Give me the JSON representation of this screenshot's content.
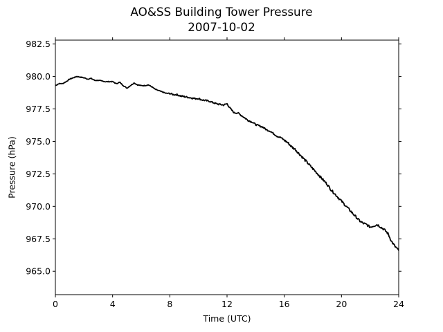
{
  "chart_data": {
    "type": "line",
    "title": "AO&SS Building Tower Pressure",
    "subtitle": "2007-10-02",
    "xlabel": "Time (UTC)",
    "ylabel": "Pressure (hPa)",
    "xlim": [
      0,
      24
    ],
    "ylim": [
      963.2,
      982.8
    ],
    "xticks": [
      0,
      4,
      8,
      12,
      16,
      20,
      24
    ],
    "xtick_labels": [
      "0",
      "4",
      "8",
      "12",
      "16",
      "20",
      "24"
    ],
    "yticks": [
      965.0,
      967.5,
      970.0,
      972.5,
      975.0,
      977.5,
      980.0,
      982.5
    ],
    "ytick_labels": [
      "965.0",
      "967.5",
      "970.0",
      "972.5",
      "975.0",
      "977.5",
      "980.0",
      "982.5"
    ],
    "grid": false,
    "line_color": "#000000",
    "series": [
      {
        "x": [
          0,
          0.25,
          0.5,
          0.75,
          1.0,
          1.25,
          1.5,
          1.75,
          2.0,
          2.25,
          2.5,
          2.75,
          3.0,
          3.25,
          3.5,
          3.75,
          4.0,
          4.25,
          4.5,
          4.75,
          5.0,
          5.25,
          5.5,
          5.75,
          6.0,
          6.25,
          6.5,
          6.75,
          7.0,
          7.25,
          7.5,
          7.75,
          8.0,
          8.25,
          8.5,
          8.75,
          9.0,
          9.25,
          9.5,
          9.75,
          10.0,
          10.25,
          10.5,
          10.75,
          11.0,
          11.25,
          11.5,
          11.75,
          12.0,
          12.25,
          12.5,
          12.75,
          13.0,
          13.25,
          13.5,
          13.75,
          14.0,
          14.25,
          14.5,
          14.75,
          15.0,
          15.25,
          15.5,
          15.75,
          16.0,
          16.25,
          16.5,
          16.75,
          17.0,
          17.25,
          17.5,
          17.75,
          18.0,
          18.25,
          18.5,
          18.75,
          19.0,
          19.25,
          19.5,
          19.75,
          20.0,
          20.25,
          20.5,
          20.75,
          21.0,
          21.25,
          21.5,
          21.75,
          22.0,
          22.25,
          22.5,
          22.75,
          23.0,
          23.25,
          23.5,
          23.75,
          24.0
        ],
        "y": [
          979.3,
          979.45,
          979.45,
          979.6,
          979.8,
          979.9,
          980.0,
          979.95,
          979.9,
          979.8,
          979.85,
          979.7,
          979.7,
          979.65,
          979.6,
          979.6,
          979.6,
          979.45,
          979.55,
          979.3,
          979.1,
          979.3,
          979.5,
          979.35,
          979.3,
          979.3,
          979.35,
          979.2,
          979.0,
          978.9,
          978.8,
          978.7,
          978.7,
          978.6,
          978.6,
          978.5,
          978.45,
          978.4,
          978.35,
          978.3,
          978.3,
          978.2,
          978.15,
          978.1,
          978.0,
          977.9,
          977.85,
          977.8,
          977.9,
          977.5,
          977.2,
          977.2,
          977.0,
          976.8,
          976.6,
          976.5,
          976.3,
          976.2,
          976.1,
          975.9,
          975.8,
          975.6,
          975.4,
          975.3,
          975.1,
          974.9,
          974.6,
          974.4,
          974.1,
          973.8,
          973.5,
          973.2,
          972.9,
          972.6,
          972.3,
          972.0,
          971.7,
          971.3,
          971.0,
          970.7,
          970.4,
          970.1,
          969.8,
          969.5,
          969.2,
          968.9,
          968.7,
          968.6,
          968.4,
          968.5,
          968.6,
          968.4,
          968.2,
          967.9,
          967.3,
          966.9,
          966.6
        ]
      }
    ]
  }
}
